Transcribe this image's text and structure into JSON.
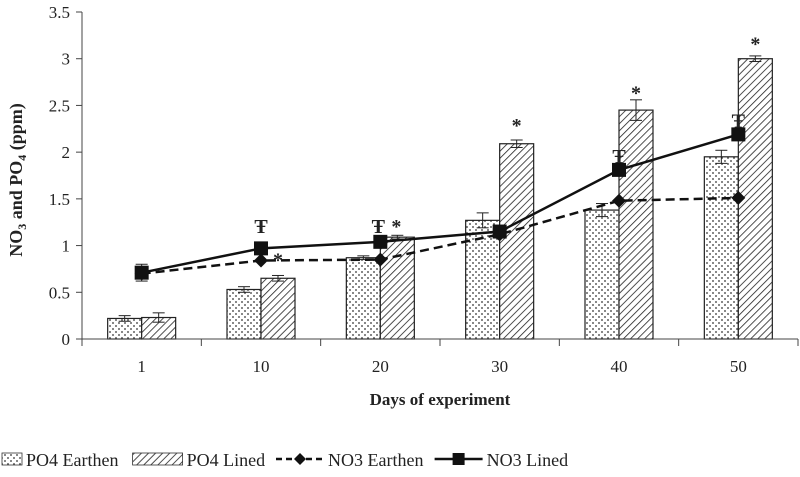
{
  "chart_data": {
    "type": "bar",
    "title": "",
    "xlabel": "Days of experiment",
    "ylabel": {
      "prefix": "NO",
      "sub1": "3",
      "mid": " and PO",
      "sub2": "4",
      "suffix": " (ppm)"
    },
    "ylim": [
      0,
      3.5
    ],
    "yticks": [
      "0",
      "0.5",
      "1",
      "1.5",
      "2",
      "2.5",
      "3",
      "3.5"
    ],
    "ytick_values": [
      0,
      0.5,
      1,
      1.5,
      2,
      2.5,
      3,
      3.5
    ],
    "categories": [
      "1",
      "10",
      "20",
      "30",
      "40",
      "50"
    ],
    "grid": false,
    "legend_position": "bottom",
    "series": [
      {
        "name": "PO4 Earthen",
        "kind": "bar",
        "pattern": "dots",
        "values": [
          0.22,
          0.53,
          0.87,
          1.27,
          1.38,
          1.95
        ],
        "errors": [
          0.03,
          0.03,
          0.02,
          0.08,
          0.07,
          0.07
        ]
      },
      {
        "name": "PO4 Lined",
        "kind": "bar",
        "pattern": "hatch",
        "values": [
          0.23,
          0.65,
          1.09,
          2.09,
          2.45,
          3.0
        ],
        "errors": [
          0.05,
          0.03,
          0.02,
          0.04,
          0.11,
          0.03
        ]
      },
      {
        "name": "NO3 Earthen",
        "kind": "line",
        "style": "dashed",
        "marker": "diamond",
        "values": [
          0.7,
          0.84,
          0.85,
          1.12,
          1.48,
          1.51
        ],
        "errors": [
          0.0,
          0.0,
          0.0,
          0.0,
          0.0,
          0.0
        ]
      },
      {
        "name": "NO3 Lined",
        "kind": "line",
        "style": "solid",
        "marker": "square",
        "values": [
          0.71,
          0.97,
          1.04,
          1.15,
          1.81,
          2.19
        ],
        "errors": [
          0.09,
          0.03,
          0.02,
          0.02,
          0.03,
          0.05
        ]
      }
    ],
    "annotations": [
      {
        "category": "1",
        "text": ""
      },
      {
        "category": "10",
        "items": [
          {
            "text": "Ŧ",
            "series": "NO3 Lined",
            "value": 1.2
          },
          {
            "text": "*",
            "series": "NO3 Earthen",
            "value": 0.84
          }
        ]
      },
      {
        "category": "20",
        "items": [
          {
            "text": "Ŧ",
            "series": "NO3 Lined",
            "value": 1.2
          },
          {
            "text": "*",
            "series": "PO4 Lined",
            "value": 1.2
          }
        ]
      },
      {
        "category": "30",
        "items": [
          {
            "text": "*",
            "series": "PO4 Lined",
            "value": 2.28
          }
        ]
      },
      {
        "category": "40",
        "items": [
          {
            "text": "Ŧ",
            "series": "NO3 Lined",
            "value": 1.95
          },
          {
            "text": "*",
            "series": "PO4 Lined",
            "value": 2.63
          }
        ]
      },
      {
        "category": "50",
        "items": [
          {
            "text": "Ŧ",
            "series": "NO3 Lined",
            "value": 2.33
          },
          {
            "text": "*",
            "series": "PO4 Lined",
            "value": 3.15
          }
        ]
      }
    ]
  }
}
